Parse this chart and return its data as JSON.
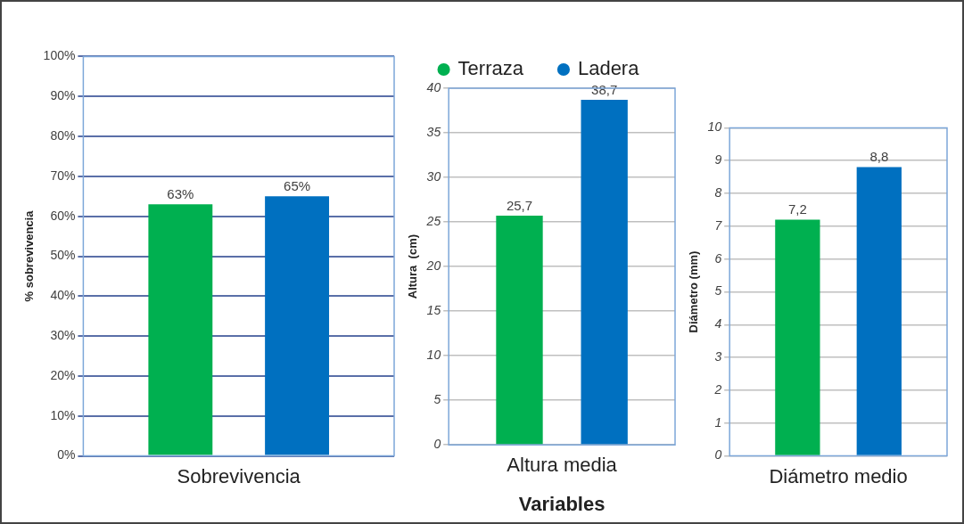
{
  "chart_data": [
    {
      "type": "bar",
      "categories": [
        "Sobrevivencia"
      ],
      "ylabel": "% sobrevivencia",
      "ylim": [
        0,
        100
      ],
      "yticks": [
        {
          "value": 0,
          "label": "0%"
        },
        {
          "value": 10,
          "label": "10%"
        },
        {
          "value": 20,
          "label": "20%"
        },
        {
          "value": 30,
          "label": "30%"
        },
        {
          "value": 40,
          "label": "40%"
        },
        {
          "value": 50,
          "label": "50%"
        },
        {
          "value": 60,
          "label": "60%"
        },
        {
          "value": 70,
          "label": "70%"
        },
        {
          "value": 80,
          "label": "80%"
        },
        {
          "value": 90,
          "label": "90%"
        },
        {
          "value": 100,
          "label": "100%"
        }
      ],
      "grid": "y",
      "legend": false,
      "series": [
        {
          "color": "#00b050",
          "values": [
            63
          ],
          "value_labels": [
            "63%"
          ]
        },
        {
          "color": "#0070c0",
          "values": [
            65
          ],
          "value_labels": [
            "65%"
          ]
        }
      ]
    },
    {
      "type": "bar",
      "categories": [
        "Altura media"
      ],
      "xlabel": "Variables",
      "ylabel": "Altura  (cm)",
      "ylim": [
        0,
        40
      ],
      "yticks": [
        0,
        5,
        10,
        15,
        20,
        25,
        30,
        35,
        40
      ],
      "grid": "y",
      "legend": "top",
      "series": [
        {
          "name": "Terraza",
          "color": "#00b050",
          "values": [
            25.7
          ],
          "value_labels": [
            "25,7"
          ]
        },
        {
          "name": "Ladera",
          "color": "#0070c0",
          "values": [
            38.7
          ],
          "value_labels": [
            "38,7"
          ]
        }
      ]
    },
    {
      "type": "bar",
      "categories": [
        "Diámetro medio"
      ],
      "ylabel": "Diámetro (mm)",
      "ylim": [
        0,
        10
      ],
      "yticks": [
        0,
        1,
        2,
        3,
        4,
        5,
        6,
        7,
        8,
        9,
        10
      ],
      "grid": "y",
      "legend": false,
      "series": [
        {
          "color": "#00b050",
          "values": [
            7.2
          ],
          "value_labels": [
            "7,2"
          ]
        },
        {
          "color": "#0070c0",
          "values": [
            8.8
          ],
          "value_labels": [
            "8,8"
          ]
        }
      ]
    }
  ]
}
